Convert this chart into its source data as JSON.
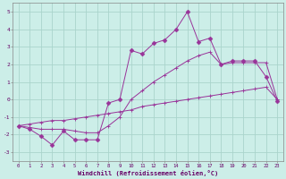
{
  "xlabel": "Windchill (Refroidissement éolien,°C)",
  "bg_color": "#cceee8",
  "grid_color": "#aad4cc",
  "line_color": "#993399",
  "x_values": [
    0,
    1,
    2,
    3,
    4,
    5,
    6,
    7,
    8,
    9,
    10,
    11,
    12,
    13,
    14,
    15,
    16,
    17,
    18,
    19,
    20,
    21,
    22,
    23
  ],
  "y_jagged": [
    -1.5,
    -1.7,
    -2.1,
    -2.6,
    -1.8,
    -2.3,
    -2.3,
    -2.3,
    -0.2,
    0.0,
    2.8,
    2.6,
    3.2,
    3.4,
    4.0,
    5.0,
    3.3,
    3.5,
    2.0,
    2.2,
    2.2,
    2.2,
    1.3,
    -0.1
  ],
  "y_mid": [
    -1.5,
    -1.6,
    -1.7,
    -1.7,
    -1.7,
    -1.8,
    -1.9,
    -1.9,
    -1.5,
    -1.0,
    0.0,
    0.5,
    1.0,
    1.4,
    1.8,
    2.2,
    2.5,
    2.7,
    2.0,
    2.1,
    2.1,
    2.1,
    2.1,
    0.0
  ],
  "y_linear": [
    -1.5,
    -1.4,
    -1.3,
    -1.2,
    -1.2,
    -1.1,
    -1.0,
    -0.9,
    -0.8,
    -0.7,
    -0.6,
    -0.4,
    -0.3,
    -0.2,
    -0.1,
    0.0,
    0.1,
    0.2,
    0.3,
    0.4,
    0.5,
    0.6,
    0.7,
    0.0
  ],
  "ylim": [
    -3.5,
    5.5
  ],
  "yticks": [
    -3,
    -2,
    -1,
    0,
    1,
    2,
    3,
    4,
    5
  ],
  "xlim": [
    -0.5,
    23.5
  ],
  "marker_size": 2.5
}
